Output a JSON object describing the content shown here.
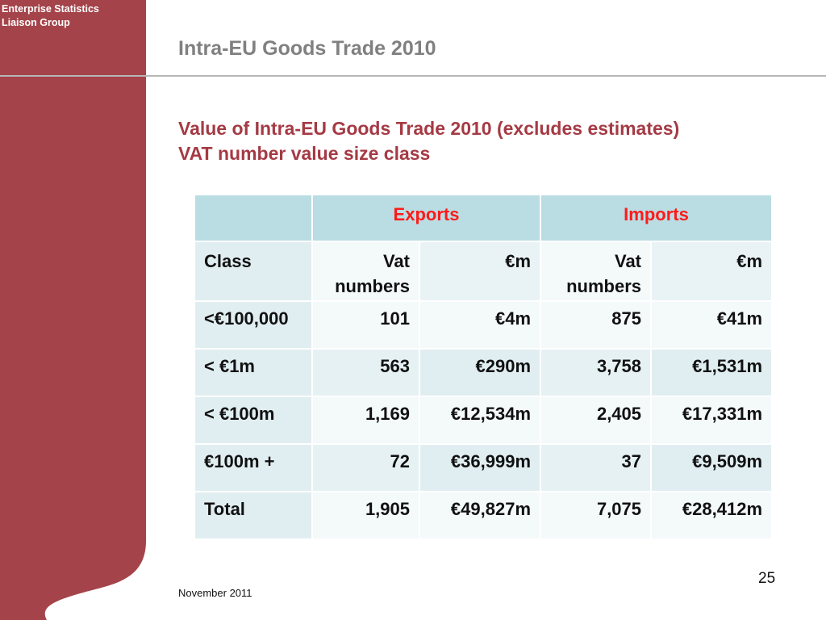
{
  "brand": {
    "line1": "Enterprise Statistics",
    "line2": "Liaison Group",
    "color": "#a4444a"
  },
  "slide": {
    "title": "Intra-EU Goods Trade 2010",
    "subtitle_line1": "Value of Intra-EU Goods Trade 2010 (excludes estimates)",
    "subtitle_line2": "VAT number value size class"
  },
  "table": {
    "group_headers": {
      "exports": "Exports",
      "imports": "Imports"
    },
    "columns": {
      "class": "Class",
      "vat_numbers": "Vat numbers",
      "euro_m": "€m"
    },
    "rows": [
      {
        "class": "<€100,000",
        "exp_vat": "101",
        "exp_value": "€4m",
        "imp_vat": "875",
        "imp_value": "€41m"
      },
      {
        "class": "< €1m",
        "exp_vat": "563",
        "exp_value": "€290m",
        "imp_vat": "3,758",
        "imp_value": "€1,531m"
      },
      {
        "class": "< €100m",
        "exp_vat": "1,169",
        "exp_value": "€12,534m",
        "imp_vat": "2,405",
        "imp_value": "€17,331m"
      },
      {
        "class": "€100m +",
        "exp_vat": "72",
        "exp_value": "€36,999m",
        "imp_vat": "37",
        "imp_value": "€9,509m"
      },
      {
        "class": "Total",
        "exp_vat": "1,905",
        "exp_value": "€49,827m",
        "imp_vat": "7,075",
        "imp_value": "€28,412m"
      }
    ]
  },
  "footer": {
    "page_number": "25",
    "date": "November 2011"
  }
}
